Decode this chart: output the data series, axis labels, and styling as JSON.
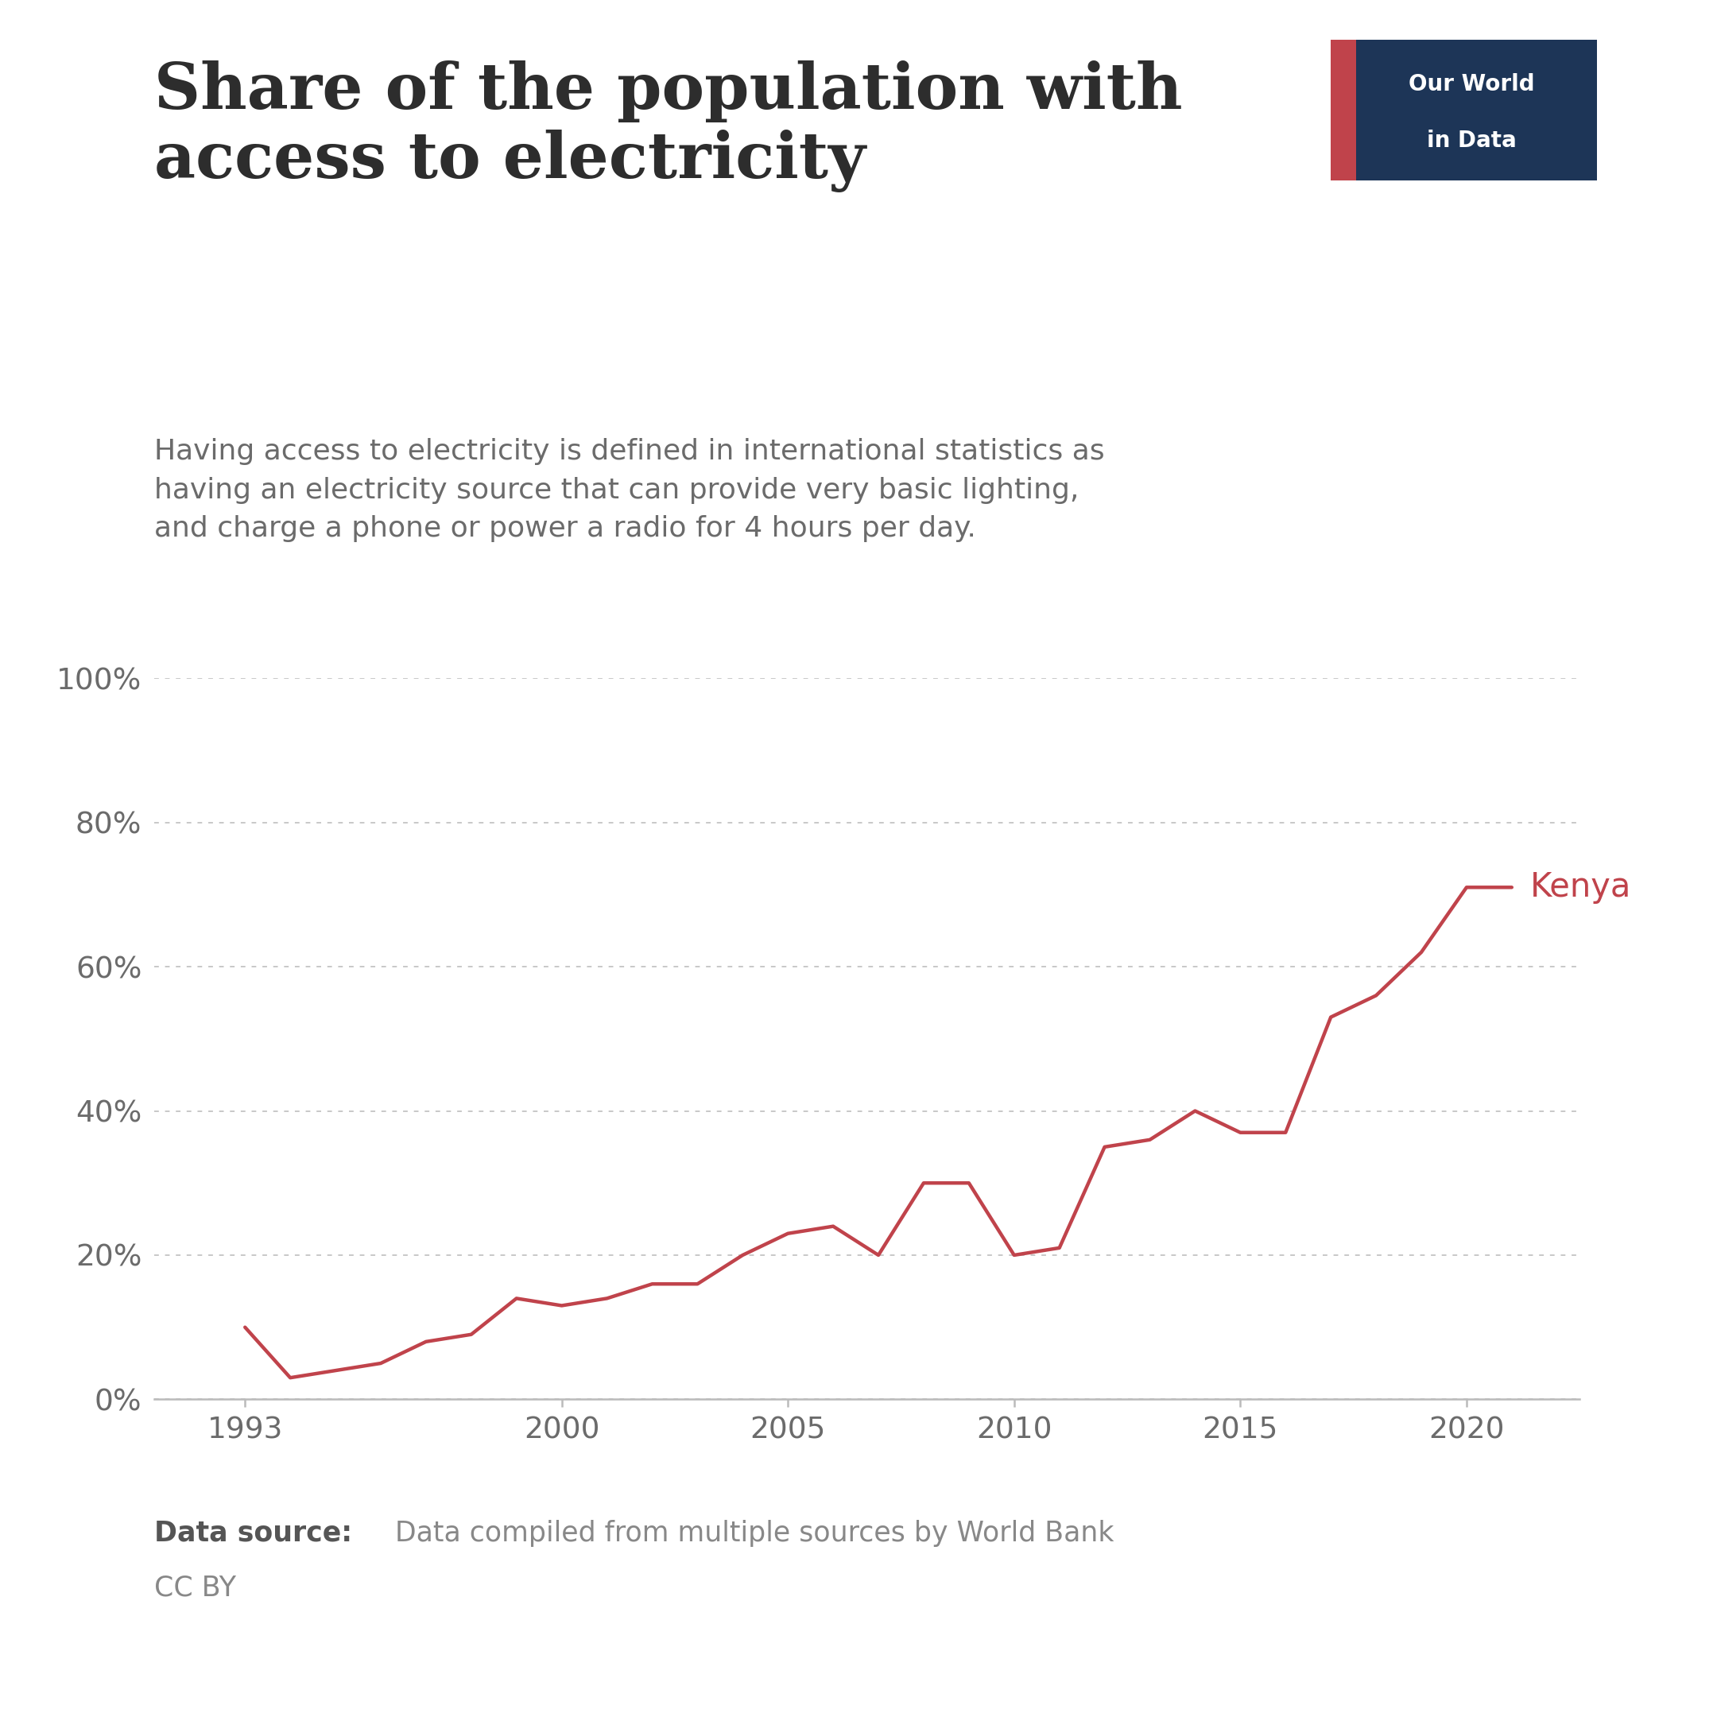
{
  "title": "Share of the population with\naccess to electricity",
  "subtitle": "Having access to electricity is defined in international statistics as\nhaving an electricity source that can provide very basic lighting,\nand charge a phone or power a radio for 4 hours per day.",
  "data_source_bold": "Data source:",
  "data_source_text": " Data compiled from multiple sources by World Bank",
  "license": "CC BY",
  "series_label": "Kenya",
  "line_color": "#c0434b",
  "years": [
    1993,
    1994,
    1995,
    1996,
    1997,
    1998,
    1999,
    2000,
    2001,
    2002,
    2003,
    2004,
    2005,
    2006,
    2007,
    2008,
    2009,
    2010,
    2011,
    2012,
    2013,
    2014,
    2015,
    2016,
    2017,
    2018,
    2019,
    2020,
    2021
  ],
  "values": [
    10,
    3,
    4,
    5,
    8,
    9,
    14,
    13,
    14,
    16,
    16,
    20,
    23,
    24,
    20,
    30,
    30,
    20,
    21,
    35,
    36,
    40,
    37,
    37,
    53,
    56,
    62,
    71,
    71
  ],
  "ylim": [
    0,
    100
  ],
  "xlim": [
    1991,
    2022.5
  ],
  "yticks": [
    0,
    20,
    40,
    60,
    80,
    100
  ],
  "ytick_labels": [
    "0%",
    "20%",
    "40%",
    "60%",
    "80%",
    "100%"
  ],
  "xticks": [
    1993,
    2000,
    2005,
    2010,
    2015,
    2020
  ],
  "background_color": "#ffffff",
  "logo_bg_color": "#1d3557",
  "logo_text_color": "#ffffff",
  "logo_accent_color": "#c0434b",
  "title_color": "#2d2d2d",
  "subtitle_color": "#6b6b6b",
  "tick_label_color": "#6b6b6b",
  "grid_color": "#c8c8c8",
  "axis_color": "#bbbbbb",
  "source_bold_color": "#555555",
  "source_color": "#888888"
}
